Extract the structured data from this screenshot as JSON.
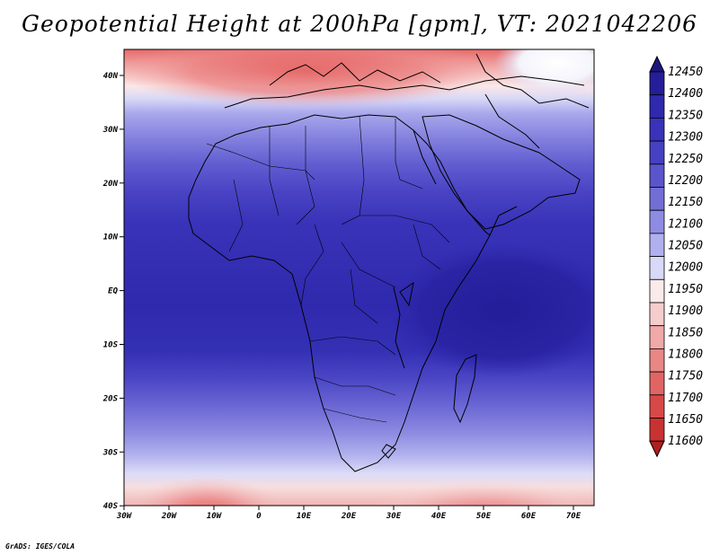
{
  "title": "Geopotential Height at 200hPa [gpm], VT: 2021042206",
  "credit": "GrADS: IGES/COLA",
  "map": {
    "lat_ticks": [
      "40N",
      "30N",
      "20N",
      "10N",
      "EQ",
      "10S",
      "20S",
      "30S",
      "40S"
    ],
    "lon_ticks": [
      "30W",
      "20W",
      "10W",
      "0",
      "10E",
      "20E",
      "30E",
      "40E",
      "50E",
      "60E",
      "70E"
    ]
  },
  "colorbar": {
    "levels": [
      "12450",
      "12400",
      "12350",
      "12300",
      "12250",
      "12200",
      "12150",
      "12100",
      "12050",
      "12000",
      "11950",
      "11900",
      "11850",
      "11800",
      "11750",
      "11700",
      "11650",
      "11600"
    ],
    "colors": [
      "#1d1780",
      "#251d9a",
      "#2f29ad",
      "#3833b8",
      "#4640c2",
      "#5a55cc",
      "#726ed6",
      "#8e8ce2",
      "#b0b0ee",
      "#d8d8f8",
      "#fbeaea",
      "#f6cccc",
      "#f0a8a8",
      "#e98686",
      "#e16464",
      "#d84848",
      "#c83232",
      "#b01e1e"
    ]
  }
}
